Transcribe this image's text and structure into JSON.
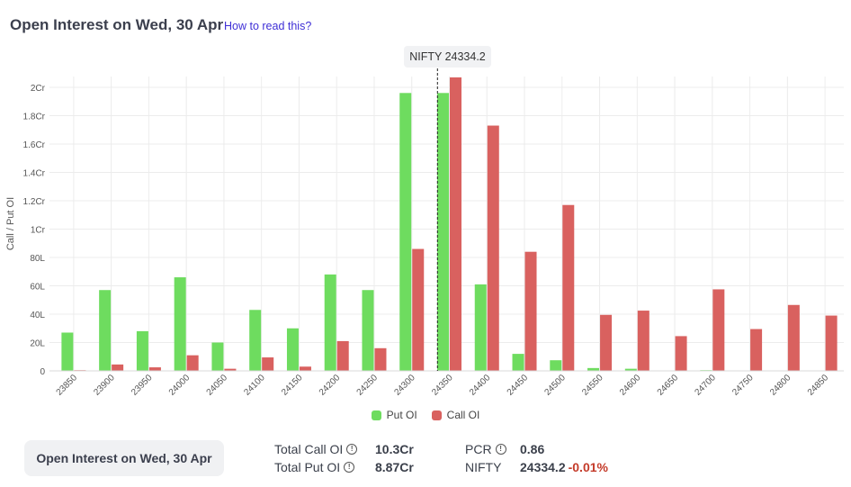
{
  "header": {
    "title": "Open Interest on Wed, 30 Apr",
    "help_link": "How to read this?"
  },
  "spot_label": "NIFTY 24334.2",
  "legend": {
    "put": "Put OI",
    "call": "Call OI"
  },
  "colors": {
    "put": "#6edc5f",
    "call": "#d9615f",
    "grid": "#ececec",
    "axis_text": "#555555"
  },
  "summary": {
    "button_label": "Open Interest on Wed, 30 Apr",
    "total_call_label": "Total Call OI",
    "total_call_value": "10.3Cr",
    "total_put_label": "Total Put OI",
    "total_put_value": "8.87Cr",
    "pcr_label": "PCR",
    "pcr_value": "0.86",
    "index_label": "NIFTY",
    "index_value": "24334.2",
    "index_change": "-0.01%"
  },
  "chart_data": {
    "type": "bar",
    "ylabel": "Call / Put OI",
    "xlabel": "",
    "ylim": [
      0,
      20000000
    ],
    "y_ticks": [
      {
        "value": 0,
        "label": "0"
      },
      {
        "value": 2000000,
        "label": "20L"
      },
      {
        "value": 4000000,
        "label": "40L"
      },
      {
        "value": 6000000,
        "label": "60L"
      },
      {
        "value": 8000000,
        "label": "80L"
      },
      {
        "value": 10000000,
        "label": "1Cr"
      },
      {
        "value": 12000000,
        "label": "1.2Cr"
      },
      {
        "value": 14000000,
        "label": "1.4Cr"
      },
      {
        "value": 16000000,
        "label": "1.6Cr"
      },
      {
        "value": 18000000,
        "label": "1.8Cr"
      },
      {
        "value": 20000000,
        "label": "2Cr"
      }
    ],
    "categories": [
      "23850",
      "23900",
      "23950",
      "24000",
      "24050",
      "24100",
      "24150",
      "24200",
      "24250",
      "24300",
      "24350",
      "24400",
      "24450",
      "24500",
      "24550",
      "24600",
      "24650",
      "24700",
      "24750",
      "24800",
      "24850"
    ],
    "series": [
      {
        "name": "Put OI",
        "values": [
          2700000,
          5700000,
          2800000,
          6600000,
          2000000,
          4300000,
          3000000,
          6800000,
          5700000,
          19600000,
          19600000,
          6100000,
          1200000,
          750000,
          200000,
          150000,
          0,
          50000,
          0,
          0,
          0
        ]
      },
      {
        "name": "Call OI",
        "values": [
          50000,
          450000,
          250000,
          1100000,
          150000,
          950000,
          300000,
          2100000,
          1600000,
          8600000,
          20700000,
          17300000,
          8400000,
          11700000,
          3950000,
          4250000,
          2450000,
          5750000,
          2950000,
          4650000,
          3900000
        ]
      }
    ],
    "spot_value": 24334.2
  }
}
